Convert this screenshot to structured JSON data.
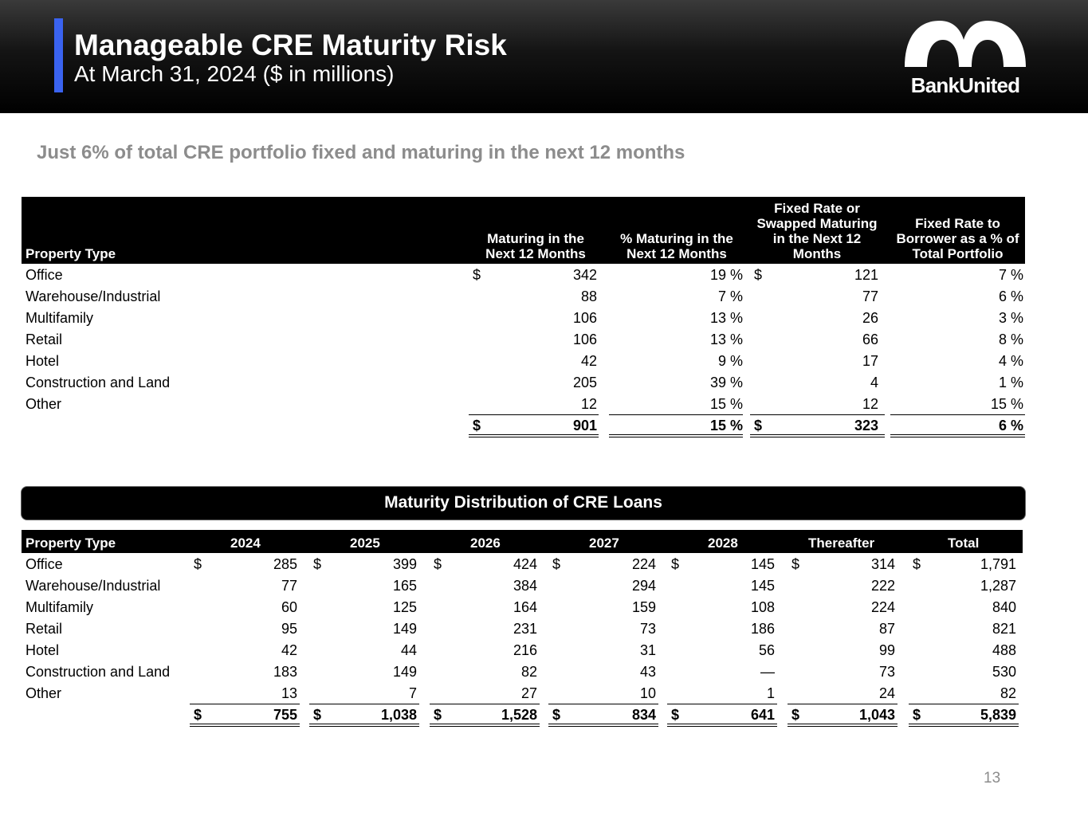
{
  "header": {
    "title": "Manageable CRE Maturity Risk",
    "subtitle": "At March 31, 2024 ($ in millions)",
    "logo_text": "BankUnited"
  },
  "headline": "Just 6% of total CRE portfolio fixed and maturing in the next 12 months",
  "table1": {
    "headers": [
      "Property Type",
      "Maturing in the Next 12 Months",
      "% Maturing in the Next 12 Months",
      "Fixed Rate or Swapped Maturing in the Next 12 Months",
      "Fixed Rate to Borrower as a % of Total Portfolio"
    ],
    "rows": [
      {
        "type": "Office",
        "dollar1": "$",
        "maturing": "342",
        "pct": "19 %",
        "dollar2": "$",
        "fixed": "121",
        "fixed_pct": "7 %"
      },
      {
        "type": "Warehouse/Industrial",
        "dollar1": "",
        "maturing": "88",
        "pct": "7 %",
        "dollar2": "",
        "fixed": "77",
        "fixed_pct": "6 %"
      },
      {
        "type": "Multifamily",
        "dollar1": "",
        "maturing": "106",
        "pct": "13 %",
        "dollar2": "",
        "fixed": "26",
        "fixed_pct": "3 %"
      },
      {
        "type": "Retail",
        "dollar1": "",
        "maturing": "106",
        "pct": "13 %",
        "dollar2": "",
        "fixed": "66",
        "fixed_pct": "8 %"
      },
      {
        "type": "Hotel",
        "dollar1": "",
        "maturing": "42",
        "pct": "9 %",
        "dollar2": "",
        "fixed": "17",
        "fixed_pct": "4 %"
      },
      {
        "type": "Construction and Land",
        "dollar1": "",
        "maturing": "205",
        "pct": "39 %",
        "dollar2": "",
        "fixed": "4",
        "fixed_pct": "1 %"
      },
      {
        "type": "Other",
        "dollar1": "",
        "maturing": "12",
        "pct": "15 %",
        "dollar2": "",
        "fixed": "12",
        "fixed_pct": "15 %"
      }
    ],
    "total": {
      "dollar1": "$",
      "maturing": "901",
      "pct": "15 %",
      "dollar2": "$",
      "fixed": "323",
      "fixed_pct": "6 %"
    }
  },
  "banner": "Maturity Distribution of CRE Loans",
  "table2": {
    "headers": [
      "Property Type",
      "2024",
      "2025",
      "2026",
      "2027",
      "2028",
      "Thereafter",
      "Total"
    ],
    "rows": [
      {
        "type": "Office",
        "sym": "$",
        "values": [
          "285",
          "399",
          "424",
          "224",
          "145",
          "314",
          "1,791"
        ]
      },
      {
        "type": "Warehouse/Industrial",
        "sym": "",
        "values": [
          "77",
          "165",
          "384",
          "294",
          "145",
          "222",
          "1,287"
        ]
      },
      {
        "type": "Multifamily",
        "sym": "",
        "values": [
          "60",
          "125",
          "164",
          "159",
          "108",
          "224",
          "840"
        ]
      },
      {
        "type": "Retail",
        "sym": "",
        "values": [
          "95",
          "149",
          "231",
          "73",
          "186",
          "87",
          "821"
        ]
      },
      {
        "type": "Hotel",
        "sym": "",
        "values": [
          "42",
          "44",
          "216",
          "31",
          "56",
          "99",
          "488"
        ]
      },
      {
        "type": "Construction and Land",
        "sym": "",
        "values": [
          "183",
          "149",
          "82",
          "43",
          "—",
          "73",
          "530"
        ]
      },
      {
        "type": "Other",
        "sym": "",
        "values": [
          "13",
          "7",
          "27",
          "10",
          "1",
          "24",
          "82"
        ]
      }
    ],
    "total": {
      "sym": "$",
      "values": [
        "755",
        "1,038",
        "1,528",
        "834",
        "641",
        "1,043",
        "5,839"
      ]
    }
  },
  "page_number": "13"
}
